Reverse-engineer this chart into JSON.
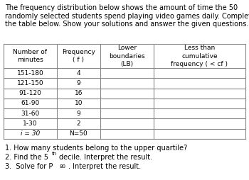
{
  "paragraph": "The frequency distribution below shows the amount of time the 50 randomly selected students spend playing video games daily. Complete the table below. Show your solutions and answer the given questions.",
  "col_headers": [
    "Number of\nminutes",
    "Frequency\n( f )",
    "Lower\nboundaries\n(LB)",
    "Less than\ncumulative\nfrequency ( < cf )"
  ],
  "rows": [
    [
      "151-180",
      "4",
      "",
      ""
    ],
    [
      "121-150",
      "9",
      "",
      ""
    ],
    [
      "91-120",
      "16",
      "",
      ""
    ],
    [
      "61-90",
      "10",
      "",
      ""
    ],
    [
      "31-60",
      "9",
      "",
      ""
    ],
    [
      "1-30",
      "2",
      "",
      ""
    ],
    [
      "i = 30",
      "N=50",
      "",
      ""
    ]
  ],
  "bg_color": "#ffffff",
  "text_color": "#000000",
  "table_line_color": "#888888",
  "font_size_para": 7.0,
  "font_size_table": 6.5,
  "font_size_q": 7.0,
  "para_line1": "The frequency distribution below shows the amount of time the 50",
  "para_line2": "randomly selected students spend playing video games daily. Complete",
  "para_line3": "the table below. Show your solutions and answer the given questions."
}
